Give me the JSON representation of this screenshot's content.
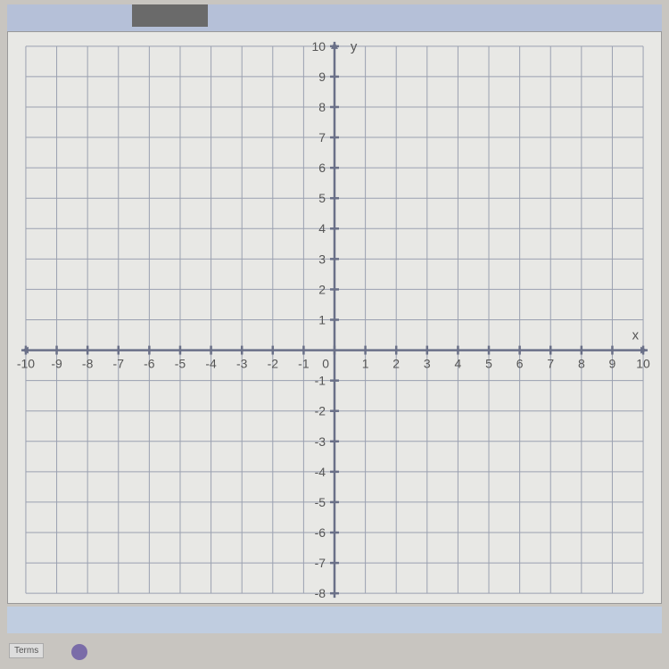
{
  "chart": {
    "type": "coordinate-grid",
    "x_axis_label": "x",
    "y_axis_label": "y",
    "xlim": [
      -10,
      10
    ],
    "ylim": [
      -8,
      10
    ],
    "x_ticks": [
      -10,
      -9,
      -8,
      -7,
      -6,
      -5,
      -4,
      -3,
      -2,
      -1,
      0,
      1,
      2,
      3,
      4,
      5,
      6,
      7,
      8,
      9,
      10
    ],
    "y_ticks": [
      -8,
      -7,
      -6,
      -5,
      -4,
      -3,
      -2,
      -1,
      1,
      2,
      3,
      4,
      5,
      6,
      7,
      8,
      9,
      10
    ],
    "x_tick_labels": [
      "-10",
      "-9",
      "-8",
      "-7",
      "-6",
      "-5",
      "-4",
      "-3",
      "-2",
      "-1",
      "0",
      "1",
      "2",
      "3",
      "4",
      "5",
      "6",
      "7",
      "8",
      "9",
      "10"
    ],
    "y_tick_labels": [
      "-8",
      "-7",
      "-6",
      "-5",
      "-4",
      "-3",
      "-2",
      "-1",
      "1",
      "2",
      "3",
      "4",
      "5",
      "6",
      "7",
      "8",
      "9",
      "10"
    ],
    "grid_color": "#9aa0b0",
    "axis_color": "#6a7088",
    "background_color": "#e8e8e5",
    "label_fontsize": 14,
    "label_color": "#555",
    "axis_line_width": 2.5,
    "grid_line_width": 1,
    "tick_length": 5,
    "arrow_size": 8
  },
  "footer": {
    "terms_label": "Terms"
  }
}
